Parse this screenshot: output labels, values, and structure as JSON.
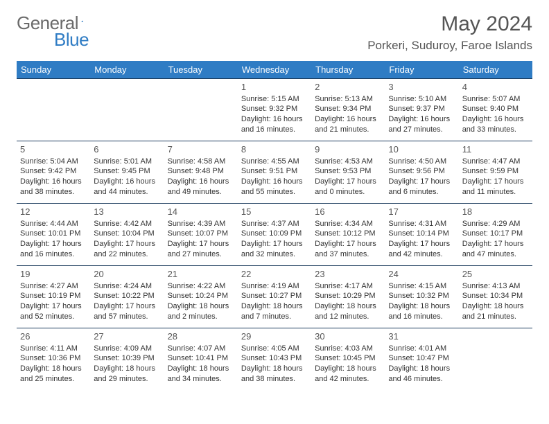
{
  "logo": {
    "text1": "General",
    "text2": "Blue"
  },
  "title": "May 2024",
  "location": "Porkeri, Suduroy, Faroe Islands",
  "weekday_header": {
    "background": "#2f7cc4",
    "text_color": "#ffffff",
    "fontsize": 13,
    "labels": [
      "Sunday",
      "Monday",
      "Tuesday",
      "Wednesday",
      "Thursday",
      "Friday",
      "Saturday"
    ]
  },
  "grid": {
    "border_color": "#1a3a5c",
    "cell_fontsize": 11,
    "daynum_fontsize": 13,
    "daynum_color": "#555555",
    "rows": 5,
    "cols": 7
  },
  "days": [
    null,
    null,
    null,
    {
      "n": "1",
      "sr": "5:15 AM",
      "ss": "9:32 PM",
      "dl": "16 hours and 16 minutes."
    },
    {
      "n": "2",
      "sr": "5:13 AM",
      "ss": "9:34 PM",
      "dl": "16 hours and 21 minutes."
    },
    {
      "n": "3",
      "sr": "5:10 AM",
      "ss": "9:37 PM",
      "dl": "16 hours and 27 minutes."
    },
    {
      "n": "4",
      "sr": "5:07 AM",
      "ss": "9:40 PM",
      "dl": "16 hours and 33 minutes."
    },
    {
      "n": "5",
      "sr": "5:04 AM",
      "ss": "9:42 PM",
      "dl": "16 hours and 38 minutes."
    },
    {
      "n": "6",
      "sr": "5:01 AM",
      "ss": "9:45 PM",
      "dl": "16 hours and 44 minutes."
    },
    {
      "n": "7",
      "sr": "4:58 AM",
      "ss": "9:48 PM",
      "dl": "16 hours and 49 minutes."
    },
    {
      "n": "8",
      "sr": "4:55 AM",
      "ss": "9:51 PM",
      "dl": "16 hours and 55 minutes."
    },
    {
      "n": "9",
      "sr": "4:53 AM",
      "ss": "9:53 PM",
      "dl": "17 hours and 0 minutes."
    },
    {
      "n": "10",
      "sr": "4:50 AM",
      "ss": "9:56 PM",
      "dl": "17 hours and 6 minutes."
    },
    {
      "n": "11",
      "sr": "4:47 AM",
      "ss": "9:59 PM",
      "dl": "17 hours and 11 minutes."
    },
    {
      "n": "12",
      "sr": "4:44 AM",
      "ss": "10:01 PM",
      "dl": "17 hours and 16 minutes."
    },
    {
      "n": "13",
      "sr": "4:42 AM",
      "ss": "10:04 PM",
      "dl": "17 hours and 22 minutes."
    },
    {
      "n": "14",
      "sr": "4:39 AM",
      "ss": "10:07 PM",
      "dl": "17 hours and 27 minutes."
    },
    {
      "n": "15",
      "sr": "4:37 AM",
      "ss": "10:09 PM",
      "dl": "17 hours and 32 minutes."
    },
    {
      "n": "16",
      "sr": "4:34 AM",
      "ss": "10:12 PM",
      "dl": "17 hours and 37 minutes."
    },
    {
      "n": "17",
      "sr": "4:31 AM",
      "ss": "10:14 PM",
      "dl": "17 hours and 42 minutes."
    },
    {
      "n": "18",
      "sr": "4:29 AM",
      "ss": "10:17 PM",
      "dl": "17 hours and 47 minutes."
    },
    {
      "n": "19",
      "sr": "4:27 AM",
      "ss": "10:19 PM",
      "dl": "17 hours and 52 minutes."
    },
    {
      "n": "20",
      "sr": "4:24 AM",
      "ss": "10:22 PM",
      "dl": "17 hours and 57 minutes."
    },
    {
      "n": "21",
      "sr": "4:22 AM",
      "ss": "10:24 PM",
      "dl": "18 hours and 2 minutes."
    },
    {
      "n": "22",
      "sr": "4:19 AM",
      "ss": "10:27 PM",
      "dl": "18 hours and 7 minutes."
    },
    {
      "n": "23",
      "sr": "4:17 AM",
      "ss": "10:29 PM",
      "dl": "18 hours and 12 minutes."
    },
    {
      "n": "24",
      "sr": "4:15 AM",
      "ss": "10:32 PM",
      "dl": "18 hours and 16 minutes."
    },
    {
      "n": "25",
      "sr": "4:13 AM",
      "ss": "10:34 PM",
      "dl": "18 hours and 21 minutes."
    },
    {
      "n": "26",
      "sr": "4:11 AM",
      "ss": "10:36 PM",
      "dl": "18 hours and 25 minutes."
    },
    {
      "n": "27",
      "sr": "4:09 AM",
      "ss": "10:39 PM",
      "dl": "18 hours and 29 minutes."
    },
    {
      "n": "28",
      "sr": "4:07 AM",
      "ss": "10:41 PM",
      "dl": "18 hours and 34 minutes."
    },
    {
      "n": "29",
      "sr": "4:05 AM",
      "ss": "10:43 PM",
      "dl": "18 hours and 38 minutes."
    },
    {
      "n": "30",
      "sr": "4:03 AM",
      "ss": "10:45 PM",
      "dl": "18 hours and 42 minutes."
    },
    {
      "n": "31",
      "sr": "4:01 AM",
      "ss": "10:47 PM",
      "dl": "18 hours and 46 minutes."
    },
    null
  ],
  "labels": {
    "sunrise_prefix": "Sunrise: ",
    "sunset_prefix": "Sunset: ",
    "daylight_prefix": "Daylight: "
  }
}
